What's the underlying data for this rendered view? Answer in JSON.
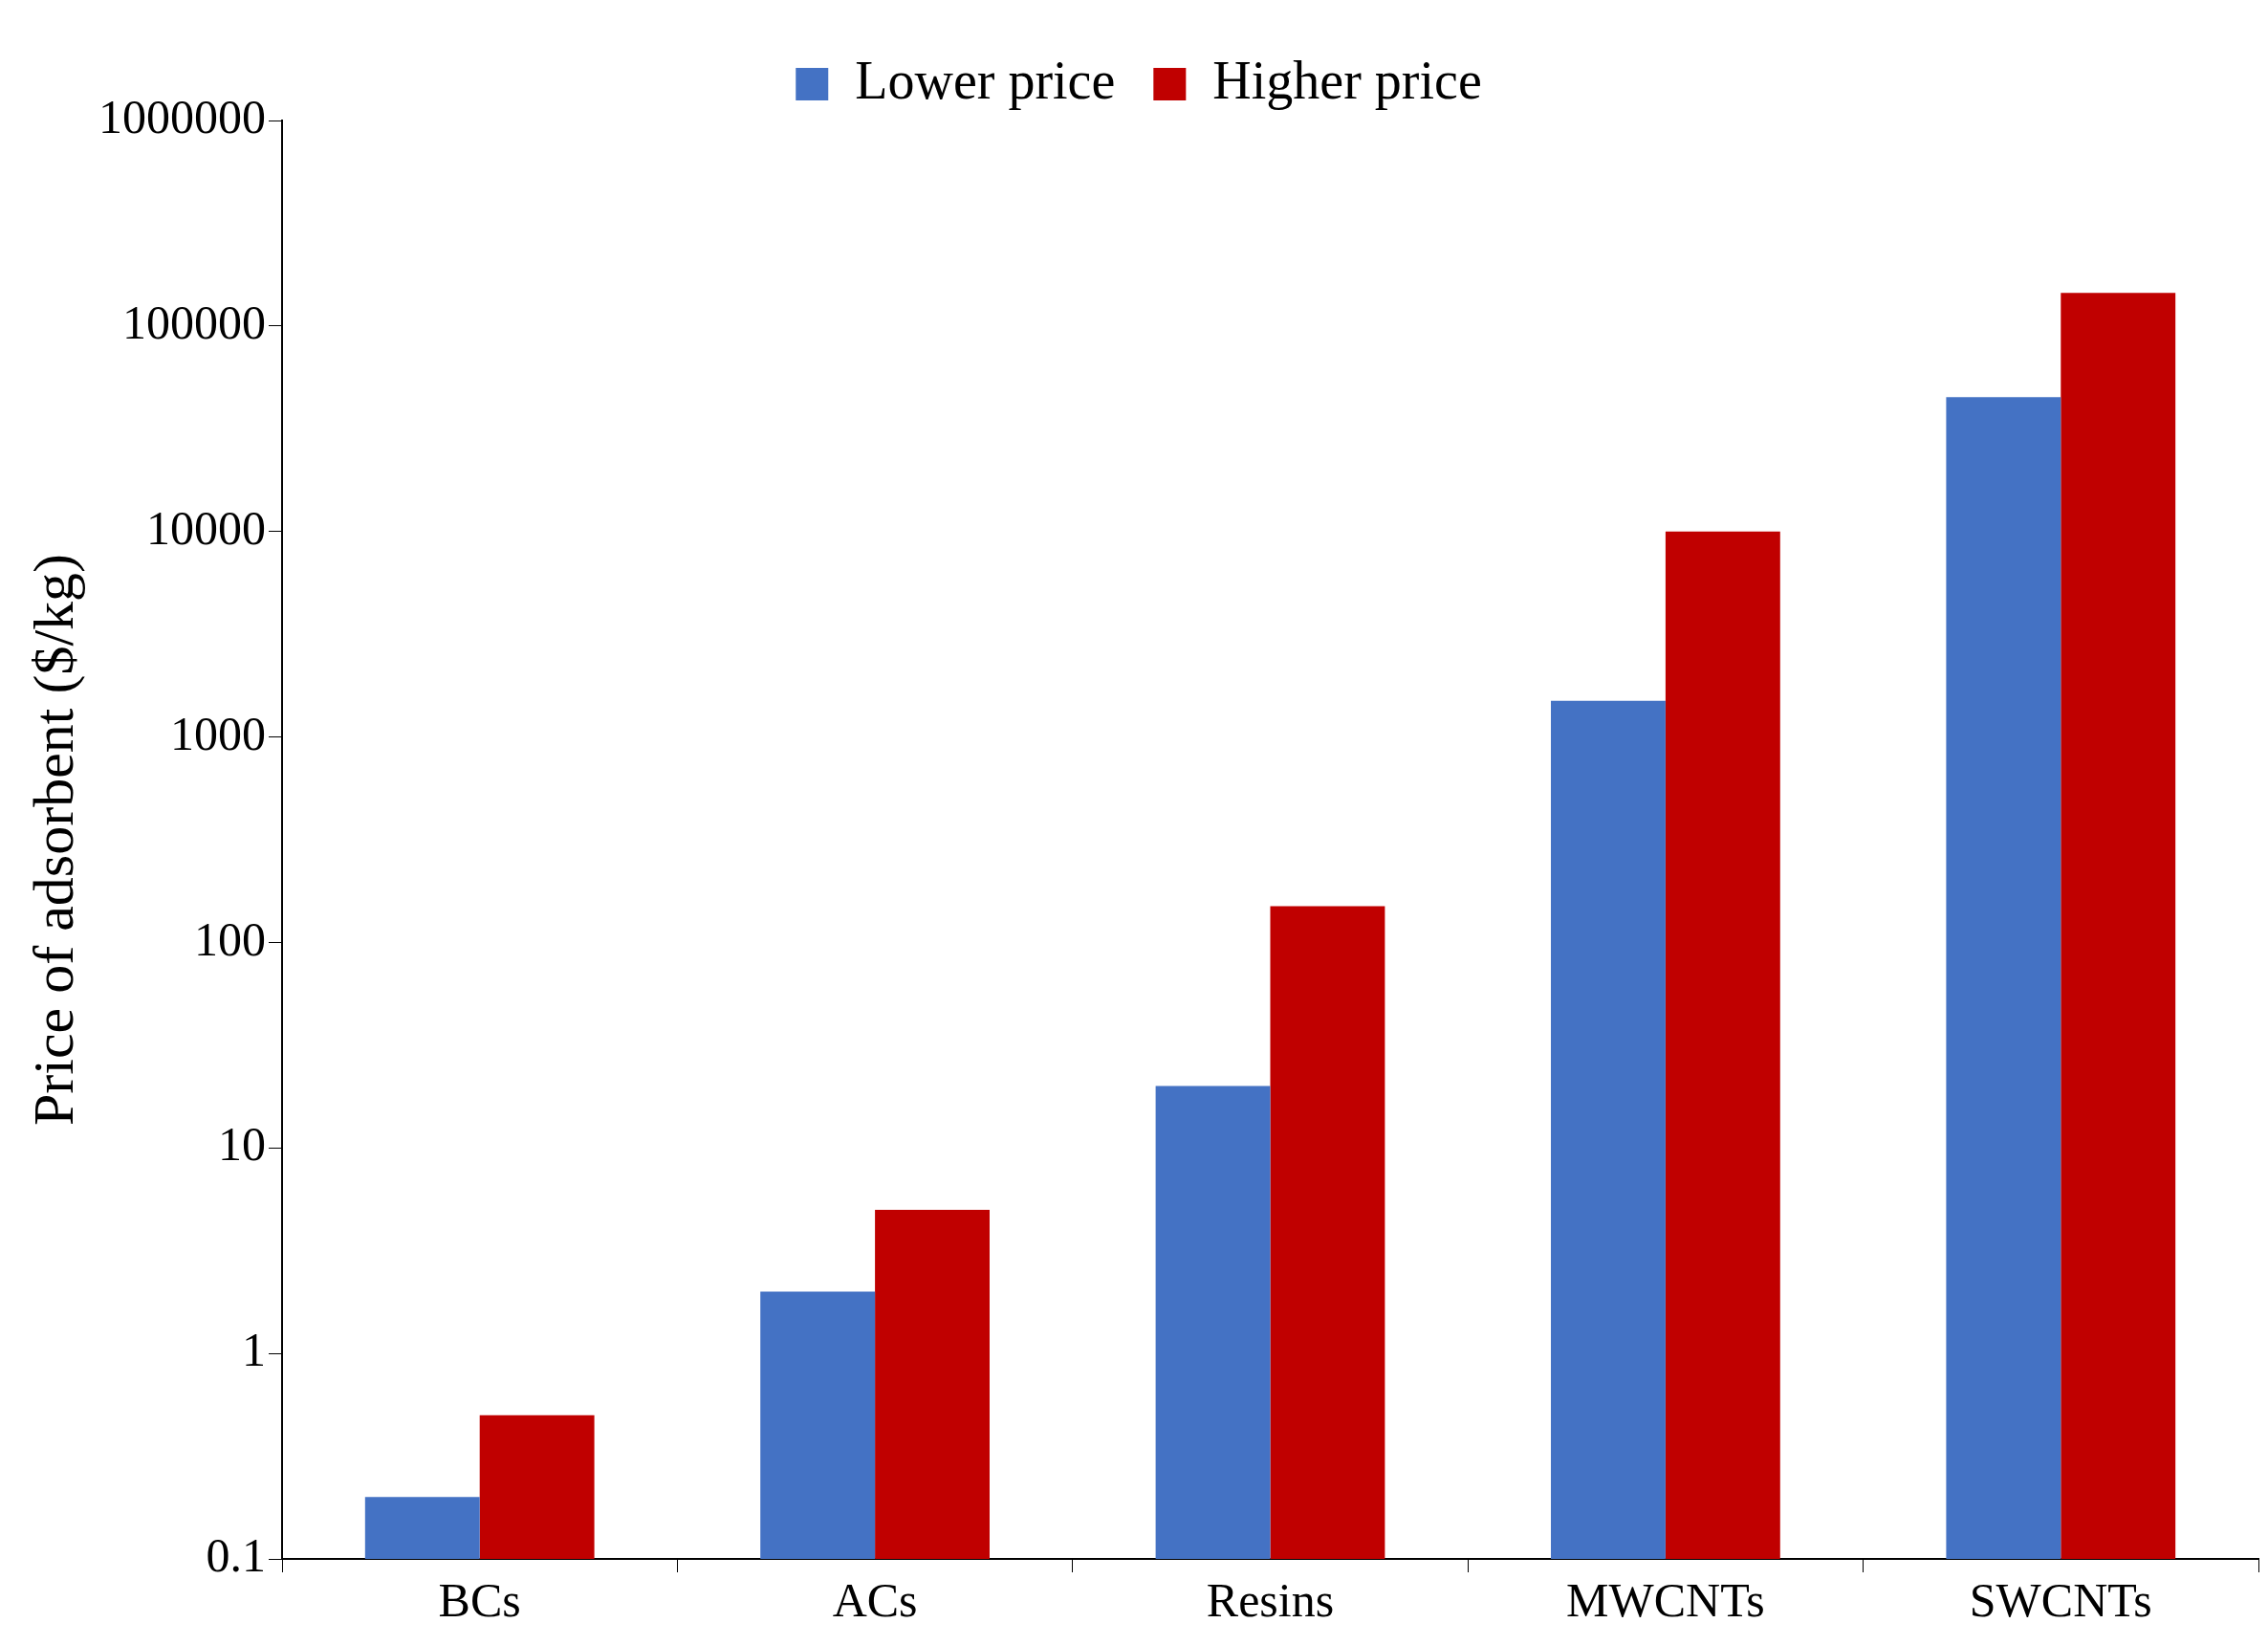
{
  "chart_data": {
    "type": "bar",
    "ylabel": "Price of adsorbent ($/kg)",
    "categories": [
      "BCs",
      "ACs",
      "Resins",
      "MWCNTs",
      "SWCNTs"
    ],
    "series": [
      {
        "name": "Lower price",
        "color": "#4472c4",
        "values": [
          0.2,
          2,
          20,
          1500,
          45000
        ]
      },
      {
        "name": "Higher price",
        "color": "#c00000",
        "values": [
          0.5,
          5,
          150,
          10000,
          145000
        ]
      }
    ],
    "log": "y",
    "ylim": [
      0.1,
      1000000
    ],
    "yticks": [
      0.1,
      1,
      10,
      100,
      1000,
      10000,
      100000,
      1000000
    ],
    "grid": false,
    "legend": "top"
  }
}
